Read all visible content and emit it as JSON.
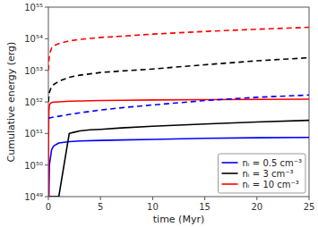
{
  "chart_data": {
    "type": "line",
    "xlabel": "time (Myr)",
    "ylabel": "Cumulative energy (erg)",
    "log": "y",
    "grid": false,
    "legend": "lower right",
    "xlim": [
      0,
      25
    ],
    "ylim": [
      1e+49,
      1e+55
    ],
    "xticks": [
      0,
      5,
      10,
      15,
      20,
      25
    ],
    "yticks": [
      {
        "value": 1e+49,
        "label": "10⁴⁹"
      },
      {
        "value": 1e+50,
        "label": "10⁵⁰"
      },
      {
        "value": 1e+51,
        "label": "10⁵¹"
      },
      {
        "value": 1e+52,
        "label": "10⁵²"
      },
      {
        "value": 1e+53,
        "label": "10⁵³"
      },
      {
        "value": 1e+54,
        "label": "10⁵⁴"
      },
      {
        "value": 1e+55,
        "label": "10⁵⁵"
      }
    ],
    "series": [
      {
        "name": "nᵢ = 0.5 cm⁻³",
        "color": "blue",
        "line_style": "solid",
        "x": [
          0,
          0.05,
          0.1,
          0.3,
          0.5,
          1.0,
          2.0,
          3.0,
          5.0,
          7.0,
          10.0,
          15.0,
          20.0,
          25.0
        ],
        "values": [
          1e+49,
          1e+49,
          1e+50,
          3e+50,
          4e+50,
          5e+50,
          5.5e+50,
          5.8e+50,
          6e+50,
          6.2e+50,
          6.5e+50,
          7e+50,
          7.3e+50,
          7.5e+50
        ]
      },
      {
        "name": "nᵢ = 3 cm⁻³",
        "color": "black",
        "line_style": "solid",
        "x": [
          0,
          0.05,
          0.1,
          0.5,
          1.0,
          2.0,
          2.5,
          3.0,
          4.0,
          5.0,
          7.0,
          10.0,
          15.0,
          20.0,
          25.0
        ],
        "values": [
          1e+49,
          1e+49,
          1e+49,
          1e+49,
          1e+49,
          1e+51,
          1.1e+51,
          1.2e+51,
          1.3e+51,
          1.35e+51,
          1.5e+51,
          1.7e+51,
          2e+51,
          2.3e+51,
          2.6e+51
        ]
      },
      {
        "name": "nᵢ = 10 cm⁻³",
        "color": "red",
        "line_style": "solid",
        "x": [
          0,
          0.02,
          0.05,
          0.1,
          0.2,
          0.3,
          0.5,
          1.0,
          2.0,
          3.0,
          5.0,
          7.0,
          10.0,
          15.0,
          20.0,
          25.0
        ],
        "values": [
          1e+49,
          1e+51,
          5e+51,
          8e+51,
          9e+51,
          9.5e+51,
          9.8e+51,
          1e+52,
          1.05e+52,
          1.07e+52,
          1.1e+52,
          1.12e+52,
          1.15e+52,
          1.18e+52,
          1.2e+52,
          1.22e+52
        ]
      },
      {
        "color": "blue",
        "line_style": "dashed",
        "x": [
          0,
          0.1,
          0.3,
          0.5,
          1.0,
          2.0,
          3.0,
          5.0,
          7.0,
          10.0,
          15.0,
          20.0,
          25.0
        ],
        "values": [
          3e+51,
          3.1e+51,
          3.2e+51,
          3.3e+51,
          3.5e+51,
          4e+51,
          4.5e+51,
          5.5e+51,
          6.5e+51,
          8e+51,
          1.1e+52,
          1.4e+52,
          1.65e+52
        ]
      },
      {
        "color": "black",
        "line_style": "dashed",
        "x": [
          0,
          0.05,
          0.1,
          0.2,
          0.3,
          0.5,
          1.0,
          2.0,
          3.0,
          5.0,
          7.0,
          10.0,
          15.0,
          20.0,
          25.0
        ],
        "values": [
          1e+52,
          1.5e+52,
          2e+52,
          2.5e+52,
          3e+52,
          3.5e+52,
          4.5e+52,
          6e+52,
          7e+52,
          8.5e+52,
          9.5e+52,
          1.1e+53,
          1.5e+53,
          2e+53,
          2.5e+53
        ]
      },
      {
        "color": "red",
        "line_style": "dashed",
        "x": [
          0,
          0.05,
          0.1,
          0.2,
          0.3,
          0.5,
          1.0,
          2.0,
          3.0,
          5.0,
          7.0,
          10.0,
          15.0,
          20.0,
          25.0
        ],
        "values": [
          1e+53,
          2e+53,
          3e+53,
          4e+53,
          5e+53,
          6e+53,
          7e+53,
          8.5e+53,
          9.5e+53,
          1.1e+54,
          1.2e+54,
          1.4e+54,
          1.7e+54,
          2e+54,
          2.3e+54
        ]
      }
    ]
  }
}
